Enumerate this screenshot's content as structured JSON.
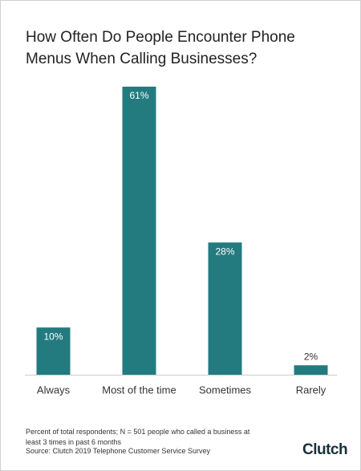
{
  "chart_data": {
    "type": "bar",
    "title": "How Often Do People Encounter Phone Menus When Calling Businesses?",
    "categories": [
      "Always",
      "Most of the time",
      "Sometimes",
      "Rarely"
    ],
    "values": [
      10,
      61,
      28,
      2
    ],
    "value_labels": [
      "10%",
      "61%",
      "28%",
      "2%"
    ],
    "color": "#237b80",
    "note": "Percent of total respondents; N = 501 people who called a business at least 3 times in past 6 months",
    "source": "Source: Clutch 2019 Telephone Customer Service Survey",
    "logo": "Clutch"
  }
}
